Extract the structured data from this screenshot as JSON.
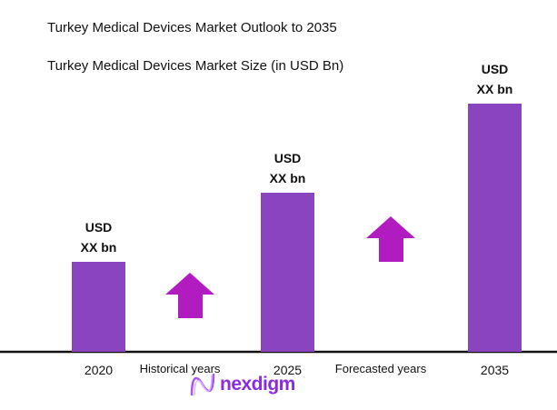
{
  "chart_data": {
    "type": "bar",
    "title": "Turkey Medical Devices Market Outlook to 2035",
    "subtitle": "Turkey Medical Devices Market Size (in USD Bn)",
    "categories": [
      "2020",
      "2025",
      "2035"
    ],
    "values": [
      null,
      null,
      null
    ],
    "data_labels": [
      [
        "USD",
        "XX bn"
      ],
      [
        "USD",
        "XX bn"
      ],
      [
        "USD",
        "XX bn"
      ]
    ],
    "period_labels": [
      "Historical years",
      "Forecasted years"
    ],
    "bar_color": "#8B44C0",
    "arrow_color": "#B01CC0",
    "grid": false,
    "trend": "increasing"
  },
  "logo": {
    "text": "nexdigm"
  }
}
